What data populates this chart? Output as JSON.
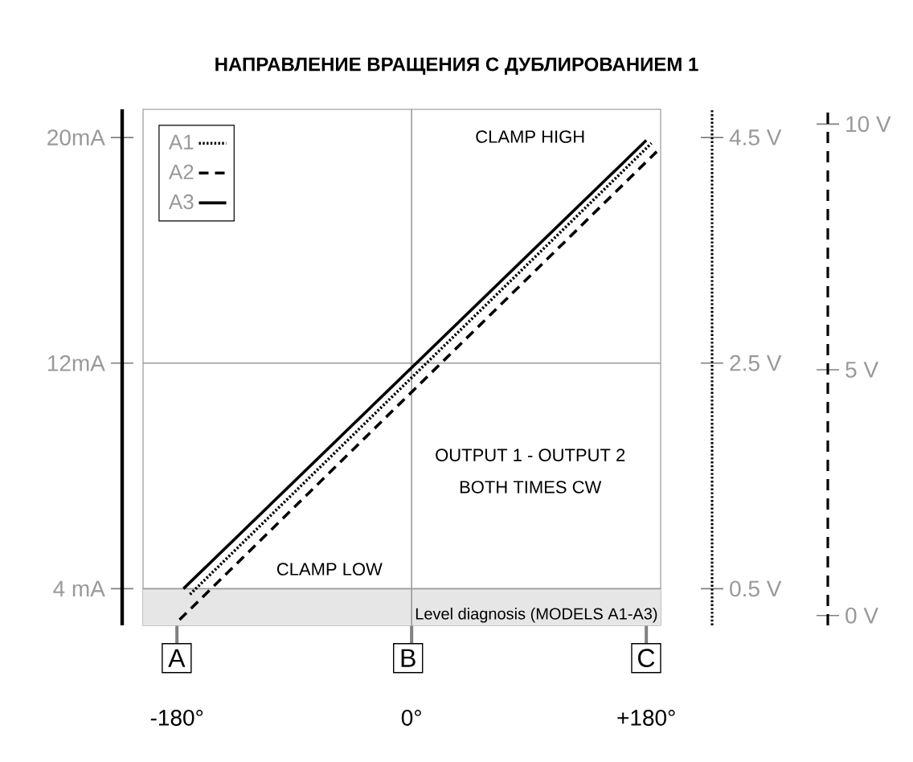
{
  "chart_data": {
    "type": "line",
    "title": "НАПРАВЛЕНИЕ ВРАЩЕНИЯ С ДУБЛИРОВАНИЕМ 1",
    "series": [
      {
        "name": "A1",
        "color": "#000000",
        "line_style": "dotted",
        "x": [
          -170,
          184
        ],
        "values": [
          3.8,
          19.8
        ]
      },
      {
        "name": "A2",
        "color": "#000000",
        "line_style": "dashed",
        "x": [
          -178,
          188
        ],
        "values": [
          2.9,
          19.5
        ]
      },
      {
        "name": "A3",
        "color": "#000000",
        "line_style": "solid",
        "x": [
          -175,
          180
        ],
        "values": [
          4,
          19.9
        ]
      }
    ],
    "legend": "top left",
    "xlim": [
      -206,
      191
    ],
    "xticks": [
      {
        "value": -180,
        "label": "-180°"
      },
      {
        "value": 0,
        "label": "0°"
      },
      {
        "value": 180,
        "label": "+180°"
      }
    ],
    "ylim": [
      2.7,
      21
    ],
    "yticks": [
      {
        "value": 4,
        "label": "4 mA"
      },
      {
        "value": 12,
        "label": "12mA"
      },
      {
        "value": 20,
        "label": "20mA"
      }
    ],
    "y2lim": [
      0.175,
      4.75
    ],
    "y2ticks": [
      {
        "value": 0.5,
        "label": "0.5 V"
      },
      {
        "value": 2.5,
        "label": "2.5 V"
      },
      {
        "value": 4.5,
        "label": "4.5 V"
      }
    ],
    "y3lim": [
      -0.2,
      10.3
    ],
    "y3ticks": [
      {
        "value": 0,
        "label": "0 V"
      },
      {
        "value": 5,
        "label": "5 V"
      },
      {
        "value": 10,
        "label": "10 V"
      }
    ],
    "ref_lines": [
      {
        "axis": "y",
        "value": 12,
        "color": "#999999"
      },
      {
        "axis": "y",
        "value": 4,
        "color": "#999999"
      },
      {
        "axis": "x",
        "value": 0,
        "color": "#999999"
      }
    ],
    "bands": [
      {
        "axis": "y",
        "from": 2.7,
        "to": 4,
        "label": "Level diagnosis (MODELS  A1-A3)",
        "color": "#e6e6e6"
      }
    ],
    "annotations": [
      "CLAMP HIGH",
      "CLAMP LOW",
      "OUTPUT 1 - OUTPUT 2",
      "BOTH TIMES CW",
      "A",
      "B",
      "C"
    ]
  }
}
